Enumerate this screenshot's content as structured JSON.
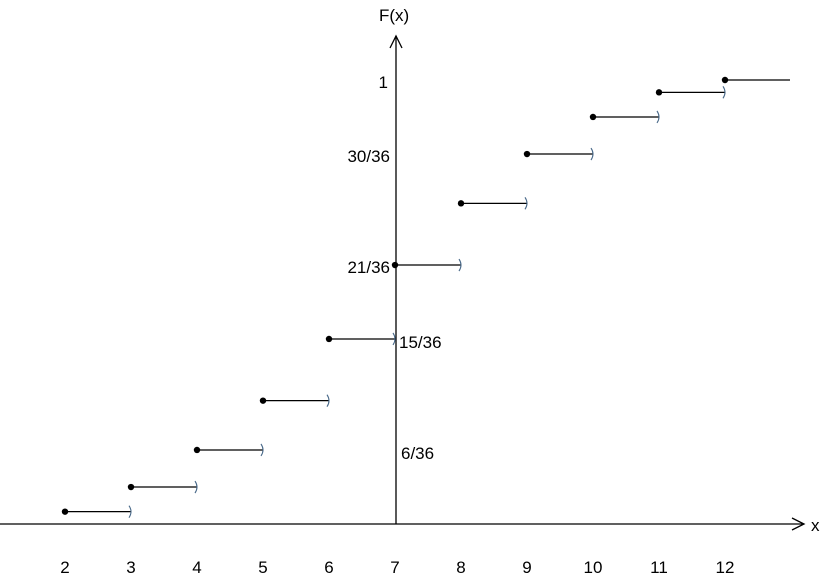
{
  "chart_data": {
    "type": "line",
    "step": true,
    "xlabel": "x",
    "ylabel": "F(x)",
    "x_ticks": [
      "2",
      "3",
      "4",
      "5",
      "6",
      "7",
      "8",
      "9",
      "10",
      "11",
      "12"
    ],
    "y_tick_labels": [
      "6/36",
      "15/36",
      "21/36",
      "30/36",
      "1"
    ],
    "x_range": [
      2,
      12
    ],
    "y_range": [
      0,
      1
    ],
    "grid": false,
    "steps": [
      {
        "x_start": 2,
        "x_end": 3,
        "y": 0.0278
      },
      {
        "x_start": 3,
        "x_end": 4,
        "y": 0.0833
      },
      {
        "x_start": 4,
        "x_end": 5,
        "y": 0.1667
      },
      {
        "x_start": 5,
        "x_end": 6,
        "y": 0.2778
      },
      {
        "x_start": 6,
        "x_end": 7,
        "y": 0.4167
      },
      {
        "x_start": 7,
        "x_end": 8,
        "y": 0.5833
      },
      {
        "x_start": 8,
        "x_end": 9,
        "y": 0.7222
      },
      {
        "x_start": 9,
        "x_end": 10,
        "y": 0.8333
      },
      {
        "x_start": 10,
        "x_end": 11,
        "y": 0.9167
      },
      {
        "x_start": 11,
        "x_end": 12,
        "y": 0.9722
      },
      {
        "x_start": 12,
        "x_end": null,
        "y": 1
      }
    ]
  }
}
